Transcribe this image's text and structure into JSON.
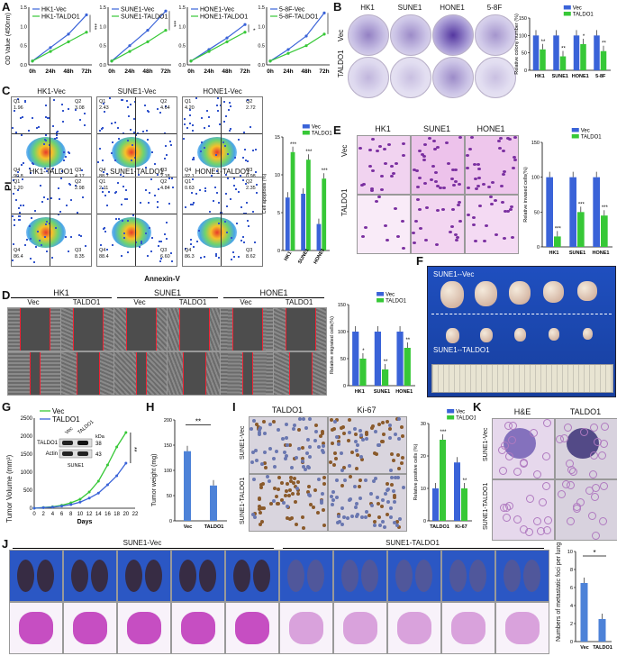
{
  "panels": {
    "A": "A",
    "B": "B",
    "C": "C",
    "D": "D",
    "E": "E",
    "F": "F",
    "G": "G",
    "H": "H",
    "I": "I",
    "J": "J",
    "K": "K"
  },
  "colors": {
    "vec": "#3a63d8",
    "taldo1": "#37c837",
    "crystal": "#4b2c9b",
    "ihc_brown": "#8a5a2b"
  },
  "A": {
    "ylabel": "OD Value (450nm)",
    "xticks": [
      "0h",
      "24h",
      "48h",
      "72h"
    ],
    "yticks": [
      "0.0",
      "0.5",
      "1.0",
      "1.5"
    ],
    "charts": [
      {
        "legend": [
          "HK1-Vec",
          "HK1-TALDO1"
        ],
        "sig": "***"
      },
      {
        "legend": [
          "SUNE1-Vec",
          "SUNE1-TALDO1"
        ],
        "sig": "***"
      },
      {
        "legend": [
          "HONE1-Vec",
          "HONE1-TALDO1"
        ],
        "sig": "*"
      },
      {
        "legend": [
          "5-8F-Vec",
          "5-8F-TALDO1"
        ],
        "sig": "***"
      }
    ]
  },
  "B": {
    "cols": [
      "HK1",
      "SUNE1",
      "HONE1",
      "5-8F"
    ],
    "rows": [
      "Vec",
      "TALDO1"
    ],
    "ylabel": "Relative colony number (%)",
    "legend": [
      "Vec",
      "TALDO1"
    ],
    "yticks": [
      "0",
      "50",
      "100",
      "150"
    ],
    "cats": [
      "HK1",
      "SUNE1",
      "HONE1",
      "5-8F"
    ],
    "stars": [
      "**",
      "**",
      "*",
      "**"
    ]
  },
  "C": {
    "titles_top": [
      "HK1-Vec",
      "SUNE1-Vec",
      "HONE1-Vec"
    ],
    "titles_bot": [
      "HK1-TALDO1",
      "SUNE1-TALDO1",
      "HONE1-TALDO1"
    ],
    "xaxis": "Annexin-V",
    "yaxis": "PI",
    "quads": [
      [
        "Q1\n1.96",
        "Q2\n3.08",
        "Q4\n90.8",
        "Q3\n4.17"
      ],
      [
        "Q1\n2.43",
        "Q2\n4.64",
        "Q4\n88.7",
        "Q3\n2.18"
      ],
      [
        "Q1\n4.20",
        "Q2\n2.72",
        "Q4\n92.1",
        "Q3\n0.98"
      ],
      [
        "Q1\n1.20",
        "Q2\n2.98",
        "Q4\n86.4",
        "Q3\n8.35"
      ],
      [
        "Q1\n2.11",
        "Q2\n4.84",
        "Q4\n88.4",
        "Q3\n6.60"
      ],
      [
        "Q1\n0.63",
        "Q2\n2.35",
        "Q4\n86.3",
        "Q3\n8.62"
      ]
    ],
    "ylabel": "Cell apoptosis (%)",
    "legend": [
      "Vec",
      "TALDO1"
    ],
    "yticks": [
      "0",
      "5",
      "10",
      "15"
    ],
    "cats": [
      "HK1",
      "SUNE1",
      "HONE1"
    ],
    "stars": [
      "***",
      "***",
      "***"
    ]
  },
  "D": {
    "groups": [
      "HK1",
      "SUNE1",
      "HONE1"
    ],
    "sub": [
      "Vec",
      "TALDO1",
      "Vec",
      "TALDO1",
      "Vec",
      "TALDO1"
    ],
    "ylabel": "Relative migrated cells(%)",
    "legend": [
      "Vec",
      "TALDO1"
    ],
    "yticks": [
      "0",
      "50",
      "100",
      "150"
    ],
    "cats": [
      "HK1",
      "SUNE1",
      "HONE1"
    ],
    "stars": [
      "*",
      "**",
      "**"
    ]
  },
  "E": {
    "cols": [
      "HK1",
      "SUNE1",
      "HONE1"
    ],
    "rows": [
      "Vec",
      "TALDO1"
    ],
    "ylabel": "Relative invased cells(%)",
    "legend": [
      "Vec",
      "TALDO1"
    ],
    "yticks": [
      "0",
      "50",
      "100",
      "150"
    ],
    "cats": [
      "HK1",
      "SUNE1",
      "HONE1"
    ],
    "stars": [
      "***",
      "***",
      "***"
    ]
  },
  "F": {
    "top": "SUNE1--Vec",
    "bottom": "SUNE1--TALDO1"
  },
  "G": {
    "ylabel": "Tumor Volume (mm³)",
    "xlabel": "Days",
    "legend": [
      "Vec",
      "TALDO1"
    ],
    "yticks": [
      "0",
      "500",
      "1000",
      "1500",
      "2000",
      "2500"
    ],
    "xticks": [
      "0",
      "2",
      "4",
      "6",
      "8",
      "10",
      "12",
      "14",
      "16",
      "18",
      "20",
      "22"
    ],
    "sig": "**",
    "blot": {
      "cols": [
        "Vec",
        "TALDO1"
      ],
      "kda": "kDa",
      "rows": [
        "TALDO1",
        "Actin"
      ],
      "sizes": [
        "38",
        "43"
      ],
      "cell": "SUNE1"
    }
  },
  "H": {
    "ylabel": "Tumor weight (mg)",
    "yticks": [
      "0",
      "50",
      "100",
      "150",
      "200"
    ],
    "cats": [
      "Vec",
      "TALDO1"
    ],
    "sig": "**"
  },
  "I": {
    "cols": [
      "TALDO1",
      "Ki-67"
    ],
    "rows": [
      "SUNE1-Vec",
      "SUNE1-TALDO1"
    ],
    "ylabel": "Relative positive cells (%)",
    "legend": [
      "Vec",
      "TALDO1"
    ],
    "yticks": [
      "0",
      "10",
      "20",
      "30"
    ],
    "cats": [
      "TALDO1",
      "Ki-67"
    ],
    "stars": [
      "***",
      "**"
    ]
  },
  "K": {
    "cols": [
      "H&E",
      "TALDO1"
    ],
    "rows": [
      "SUNE1-Vec",
      "SUNE1-TALDO1"
    ]
  },
  "J": {
    "groups": [
      "SUNE1-Vec",
      "SUNE1-TALDO1"
    ],
    "ylabel": "Numbers of metastatic foci per lung",
    "yticks": [
      "0",
      "2",
      "4",
      "6",
      "8",
      "10"
    ],
    "cats": [
      "Vec",
      "TALDO1"
    ],
    "sig": "*"
  },
  "chart_data": [
    {
      "type": "line",
      "panel": "A1",
      "x": [
        "0h",
        "24h",
        "48h",
        "72h"
      ],
      "series": [
        {
          "name": "HK1-Vec",
          "values": [
            0.1,
            0.45,
            0.8,
            1.3
          ]
        },
        {
          "name": "HK1-TALDO1",
          "values": [
            0.1,
            0.35,
            0.6,
            0.85
          ]
        }
      ],
      "ylim": [
        0,
        1.5
      ]
    },
    {
      "type": "line",
      "panel": "A2",
      "x": [
        "0h",
        "24h",
        "48h",
        "72h"
      ],
      "series": [
        {
          "name": "SUNE1-Vec",
          "values": [
            0.1,
            0.5,
            0.9,
            1.4
          ]
        },
        {
          "name": "SUNE1-TALDO1",
          "values": [
            0.1,
            0.35,
            0.6,
            0.9
          ]
        }
      ],
      "ylim": [
        0,
        1.5
      ]
    },
    {
      "type": "line",
      "panel": "A3",
      "x": [
        "0h",
        "24h",
        "48h",
        "72h"
      ],
      "series": [
        {
          "name": "HONE1-Vec",
          "values": [
            0.1,
            0.4,
            0.7,
            1.05
          ]
        },
        {
          "name": "HONE1-TALDO1",
          "values": [
            0.1,
            0.35,
            0.6,
            0.85
          ]
        }
      ],
      "ylim": [
        0,
        1.5
      ]
    },
    {
      "type": "line",
      "panel": "A4",
      "x": [
        "0h",
        "24h",
        "48h",
        "72h"
      ],
      "series": [
        {
          "name": "5-8F-Vec",
          "values": [
            0.1,
            0.4,
            0.75,
            1.35
          ]
        },
        {
          "name": "5-8F-TALDO1",
          "values": [
            0.1,
            0.3,
            0.5,
            0.8
          ]
        }
      ],
      "ylim": [
        0,
        1.5
      ]
    },
    {
      "type": "bar",
      "panel": "B",
      "categories": [
        "HK1",
        "SUNE1",
        "HONE1",
        "5-8F"
      ],
      "series": [
        {
          "name": "Vec",
          "values": [
            100,
            100,
            100,
            100
          ]
        },
        {
          "name": "TALDO1",
          "values": [
            60,
            40,
            75,
            55
          ]
        }
      ],
      "ylim": [
        0,
        150
      ]
    },
    {
      "type": "bar",
      "panel": "C",
      "categories": [
        "HK1",
        "SUNE1",
        "HONE1"
      ],
      "series": [
        {
          "name": "Vec",
          "values": [
            7,
            7.5,
            3.5
          ]
        },
        {
          "name": "TALDO1",
          "values": [
            13,
            12,
            9.5
          ]
        }
      ],
      "ylim": [
        0,
        15
      ]
    },
    {
      "type": "bar",
      "panel": "D",
      "categories": [
        "HK1",
        "SUNE1",
        "HONE1"
      ],
      "series": [
        {
          "name": "Vec",
          "values": [
            100,
            100,
            100
          ]
        },
        {
          "name": "TALDO1",
          "values": [
            50,
            30,
            70
          ]
        }
      ],
      "ylim": [
        0,
        150
      ]
    },
    {
      "type": "bar",
      "panel": "E",
      "categories": [
        "HK1",
        "SUNE1",
        "HONE1"
      ],
      "series": [
        {
          "name": "Vec",
          "values": [
            100,
            100,
            100
          ]
        },
        {
          "name": "TALDO1",
          "values": [
            15,
            50,
            45
          ]
        }
      ],
      "ylim": [
        0,
        150
      ]
    },
    {
      "type": "line",
      "panel": "G",
      "x": [
        0,
        2,
        4,
        6,
        8,
        10,
        12,
        14,
        16,
        18,
        20
      ],
      "series": [
        {
          "name": "Vec",
          "values": [
            0,
            20,
            40,
            80,
            150,
            250,
            450,
            750,
            1200,
            1700,
            2100
          ]
        },
        {
          "name": "TALDO1",
          "values": [
            0,
            15,
            30,
            60,
            100,
            170,
            280,
            420,
            650,
            900,
            1250
          ]
        }
      ],
      "ylim": [
        0,
        2500
      ]
    },
    {
      "type": "bar",
      "panel": "H",
      "categories": [
        "Vec",
        "TALDO1"
      ],
      "values": [
        138,
        70
      ],
      "ylim": [
        0,
        200
      ]
    },
    {
      "type": "bar",
      "panel": "I",
      "categories": [
        "TALDO1",
        "Ki-67"
      ],
      "series": [
        {
          "name": "Vec",
          "values": [
            10,
            18
          ]
        },
        {
          "name": "TALDO1",
          "values": [
            25,
            10
          ]
        }
      ],
      "ylim": [
        0,
        30
      ]
    },
    {
      "type": "bar",
      "panel": "J",
      "categories": [
        "Vec",
        "TALDO1"
      ],
      "values": [
        6.5,
        2.5
      ],
      "ylim": [
        0,
        10
      ]
    }
  ]
}
